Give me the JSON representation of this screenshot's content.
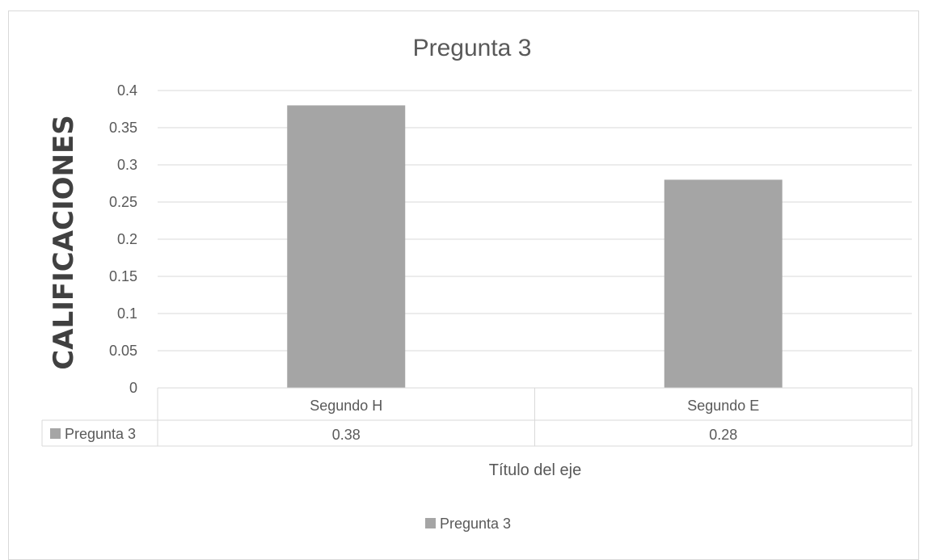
{
  "chart_data": {
    "type": "bar",
    "title": "Pregunta 3",
    "ylabel": "CALIFICACIONES",
    "xlabel": "Título del eje",
    "categories": [
      "Segundo H",
      "Segundo E"
    ],
    "series": [
      {
        "name": "Pregunta 3",
        "values": [
          0.38,
          0.28
        ],
        "value_labels": [
          "0.38",
          "0.28"
        ],
        "color": "#a5a5a5"
      }
    ],
    "ylim": [
      0,
      0.4
    ],
    "yticks": [
      "0",
      "0.05",
      "0.1",
      "0.15",
      "0.2",
      "0.25",
      "0.3",
      "0.35",
      "0.4"
    ],
    "grid": true,
    "legend": "bottom",
    "data_table": true,
    "colors": {
      "bar": "#a5a5a5",
      "grid": "#d9d9d9",
      "text": "#595959",
      "axis_title": "#404040"
    }
  }
}
